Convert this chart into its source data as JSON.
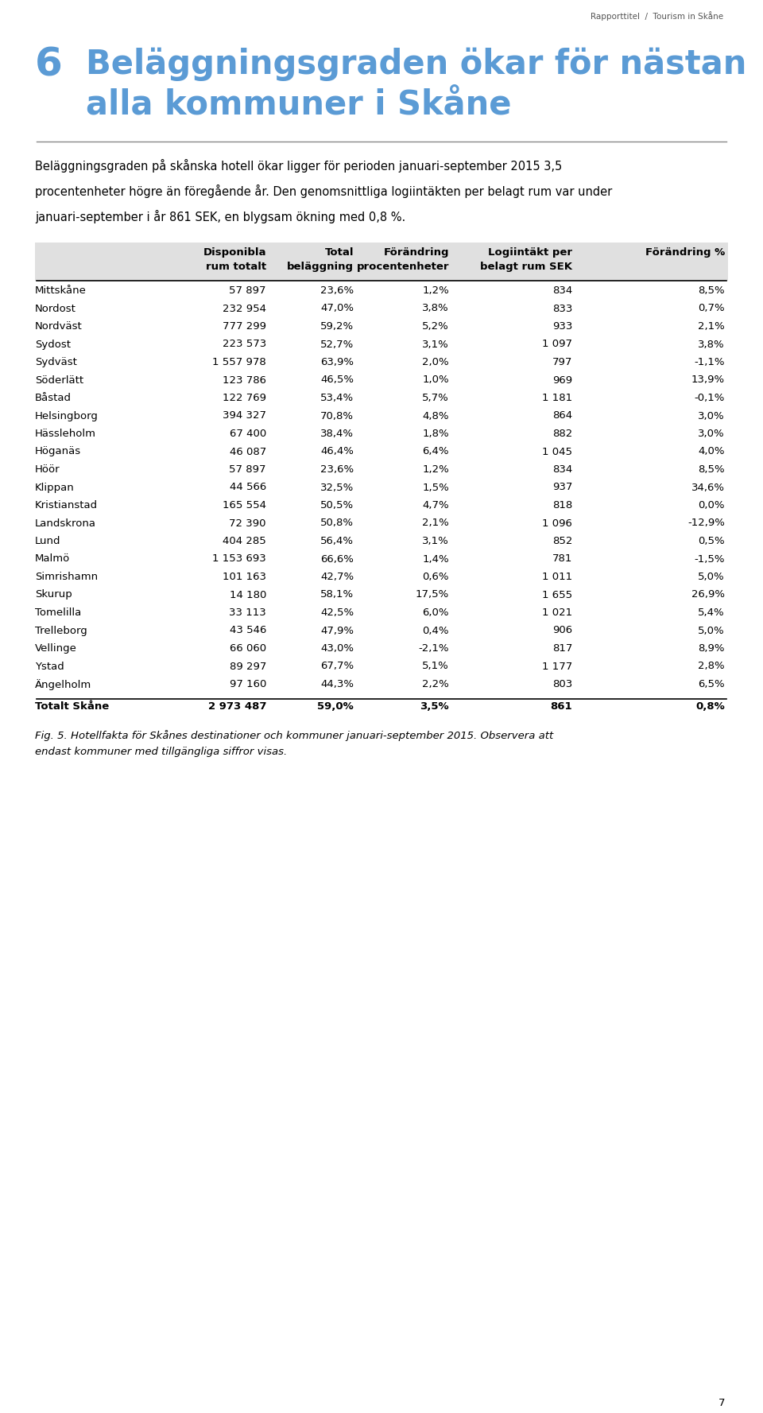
{
  "header_line": "Rapporttitel  /  Tourism in Skåne",
  "chapter_number": "6",
  "chapter_title_line1": "Beläggningsgraden ökar för nästan",
  "chapter_title_line2": "alla kommuner i Skåne",
  "chapter_title_color": "#5b9bd5",
  "body_text_line1": "Beläggningsgraden på skånska hotell ökar ligger för perioden januari-september 2015 3,5",
  "body_text_line2": "procentenheter högre än föregående år. Den genomsnittliga logiintäkten per belagt rum var under",
  "body_text_line3": "januari-september i år 861 SEK, en blygsam ökning med 0,8 %.",
  "col_headers": [
    [
      "Disponibla",
      "rum totalt"
    ],
    [
      "Total",
      "beläggning"
    ],
    [
      "Förändring",
      "procentenheter"
    ],
    [
      "Logiintäkt per",
      "belagt rum SEK"
    ],
    [
      "Förändring %",
      ""
    ]
  ],
  "rows": [
    [
      "Mittskåne",
      "57 897",
      "23,6%",
      "1,2%",
      "834",
      "8,5%"
    ],
    [
      "Nordost",
      "232 954",
      "47,0%",
      "3,8%",
      "833",
      "0,7%"
    ],
    [
      "Nordväst",
      "777 299",
      "59,2%",
      "5,2%",
      "933",
      "2,1%"
    ],
    [
      "Sydost",
      "223 573",
      "52,7%",
      "3,1%",
      "1 097",
      "3,8%"
    ],
    [
      "Sydväst",
      "1 557 978",
      "63,9%",
      "2,0%",
      "797",
      "-1,1%"
    ],
    [
      "Söderlätt",
      "123 786",
      "46,5%",
      "1,0%",
      "969",
      "13,9%"
    ],
    [
      "Båstad",
      "122 769",
      "53,4%",
      "5,7%",
      "1 181",
      "-0,1%"
    ],
    [
      "Helsingborg",
      "394 327",
      "70,8%",
      "4,8%",
      "864",
      "3,0%"
    ],
    [
      "Hässleholm",
      "67 400",
      "38,4%",
      "1,8%",
      "882",
      "3,0%"
    ],
    [
      "Höganäs",
      "46 087",
      "46,4%",
      "6,4%",
      "1 045",
      "4,0%"
    ],
    [
      "Höör",
      "57 897",
      "23,6%",
      "1,2%",
      "834",
      "8,5%"
    ],
    [
      "Klippan",
      "44 566",
      "32,5%",
      "1,5%",
      "937",
      "34,6%"
    ],
    [
      "Kristianstad",
      "165 554",
      "50,5%",
      "4,7%",
      "818",
      "0,0%"
    ],
    [
      "Landskrona",
      "72 390",
      "50,8%",
      "2,1%",
      "1 096",
      "-12,9%"
    ],
    [
      "Lund",
      "404 285",
      "56,4%",
      "3,1%",
      "852",
      "0,5%"
    ],
    [
      "Malmö",
      "1 153 693",
      "66,6%",
      "1,4%",
      "781",
      "-1,5%"
    ],
    [
      "Simrishamn",
      "101 163",
      "42,7%",
      "0,6%",
      "1 011",
      "5,0%"
    ],
    [
      "Skurup",
      "14 180",
      "58,1%",
      "17,5%",
      "1 655",
      "26,9%"
    ],
    [
      "Tomelilla",
      "33 113",
      "42,5%",
      "6,0%",
      "1 021",
      "5,4%"
    ],
    [
      "Trelleborg",
      "43 546",
      "47,9%",
      "0,4%",
      "906",
      "5,0%"
    ],
    [
      "Vellinge",
      "66 060",
      "43,0%",
      "-2,1%",
      "817",
      "8,9%"
    ],
    [
      "Ystad",
      "89 297",
      "67,7%",
      "5,1%",
      "1 177",
      "2,8%"
    ],
    [
      "Ängelholm",
      "97 160",
      "44,3%",
      "2,2%",
      "803",
      "6,5%"
    ]
  ],
  "total_row": [
    "Totalt Skåne",
    "2 973 487",
    "59,0%",
    "3,5%",
    "861",
    "0,8%"
  ],
  "caption_line1": "Fig. 5. Hotellfakta för Skånes destinationer och kommuner januari-september 2015. Observera att",
  "caption_line2": "endast kommuner med tillgängliga siffror visas.",
  "page_number": "7",
  "background_color": "#ffffff",
  "text_color": "#000000",
  "header_bg_color": "#e0e0e0",
  "title_color": "#5b9bd5",
  "rule_color": "#888888",
  "header_rule_color": "#000000"
}
